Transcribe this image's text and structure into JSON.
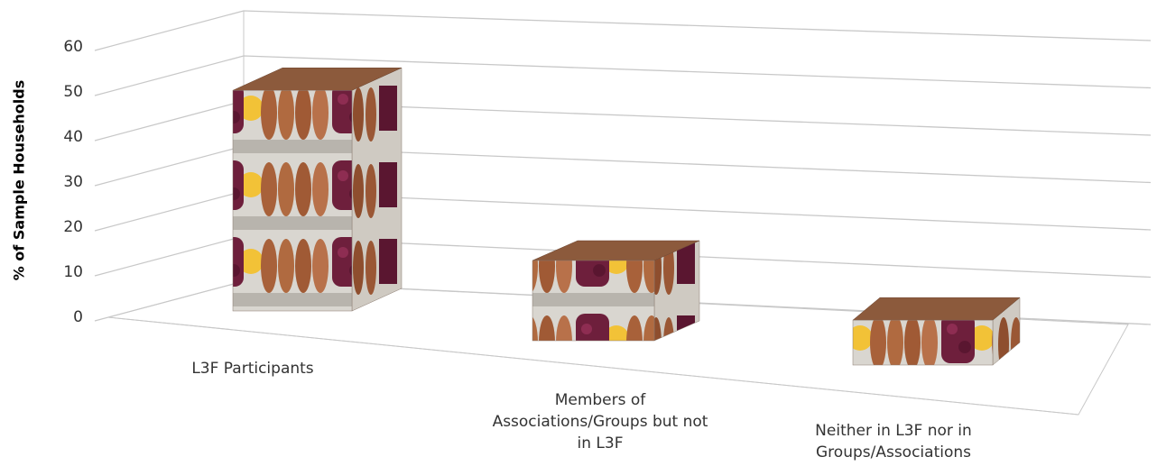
{
  "chart_data": {
    "type": "bar3d",
    "y_label": "% of Sample Households",
    "categories": [
      "L3F Participants",
      "Members of\nAssociations/Groups but not\nin L3F",
      "Neither in L3F nor in\nGroups/Associations"
    ],
    "values": [
      55,
      20,
      10
    ],
    "ylim": [
      0,
      60
    ],
    "yticks": [
      0,
      10,
      20,
      30,
      40,
      50,
      60
    ],
    "grid": true
  }
}
